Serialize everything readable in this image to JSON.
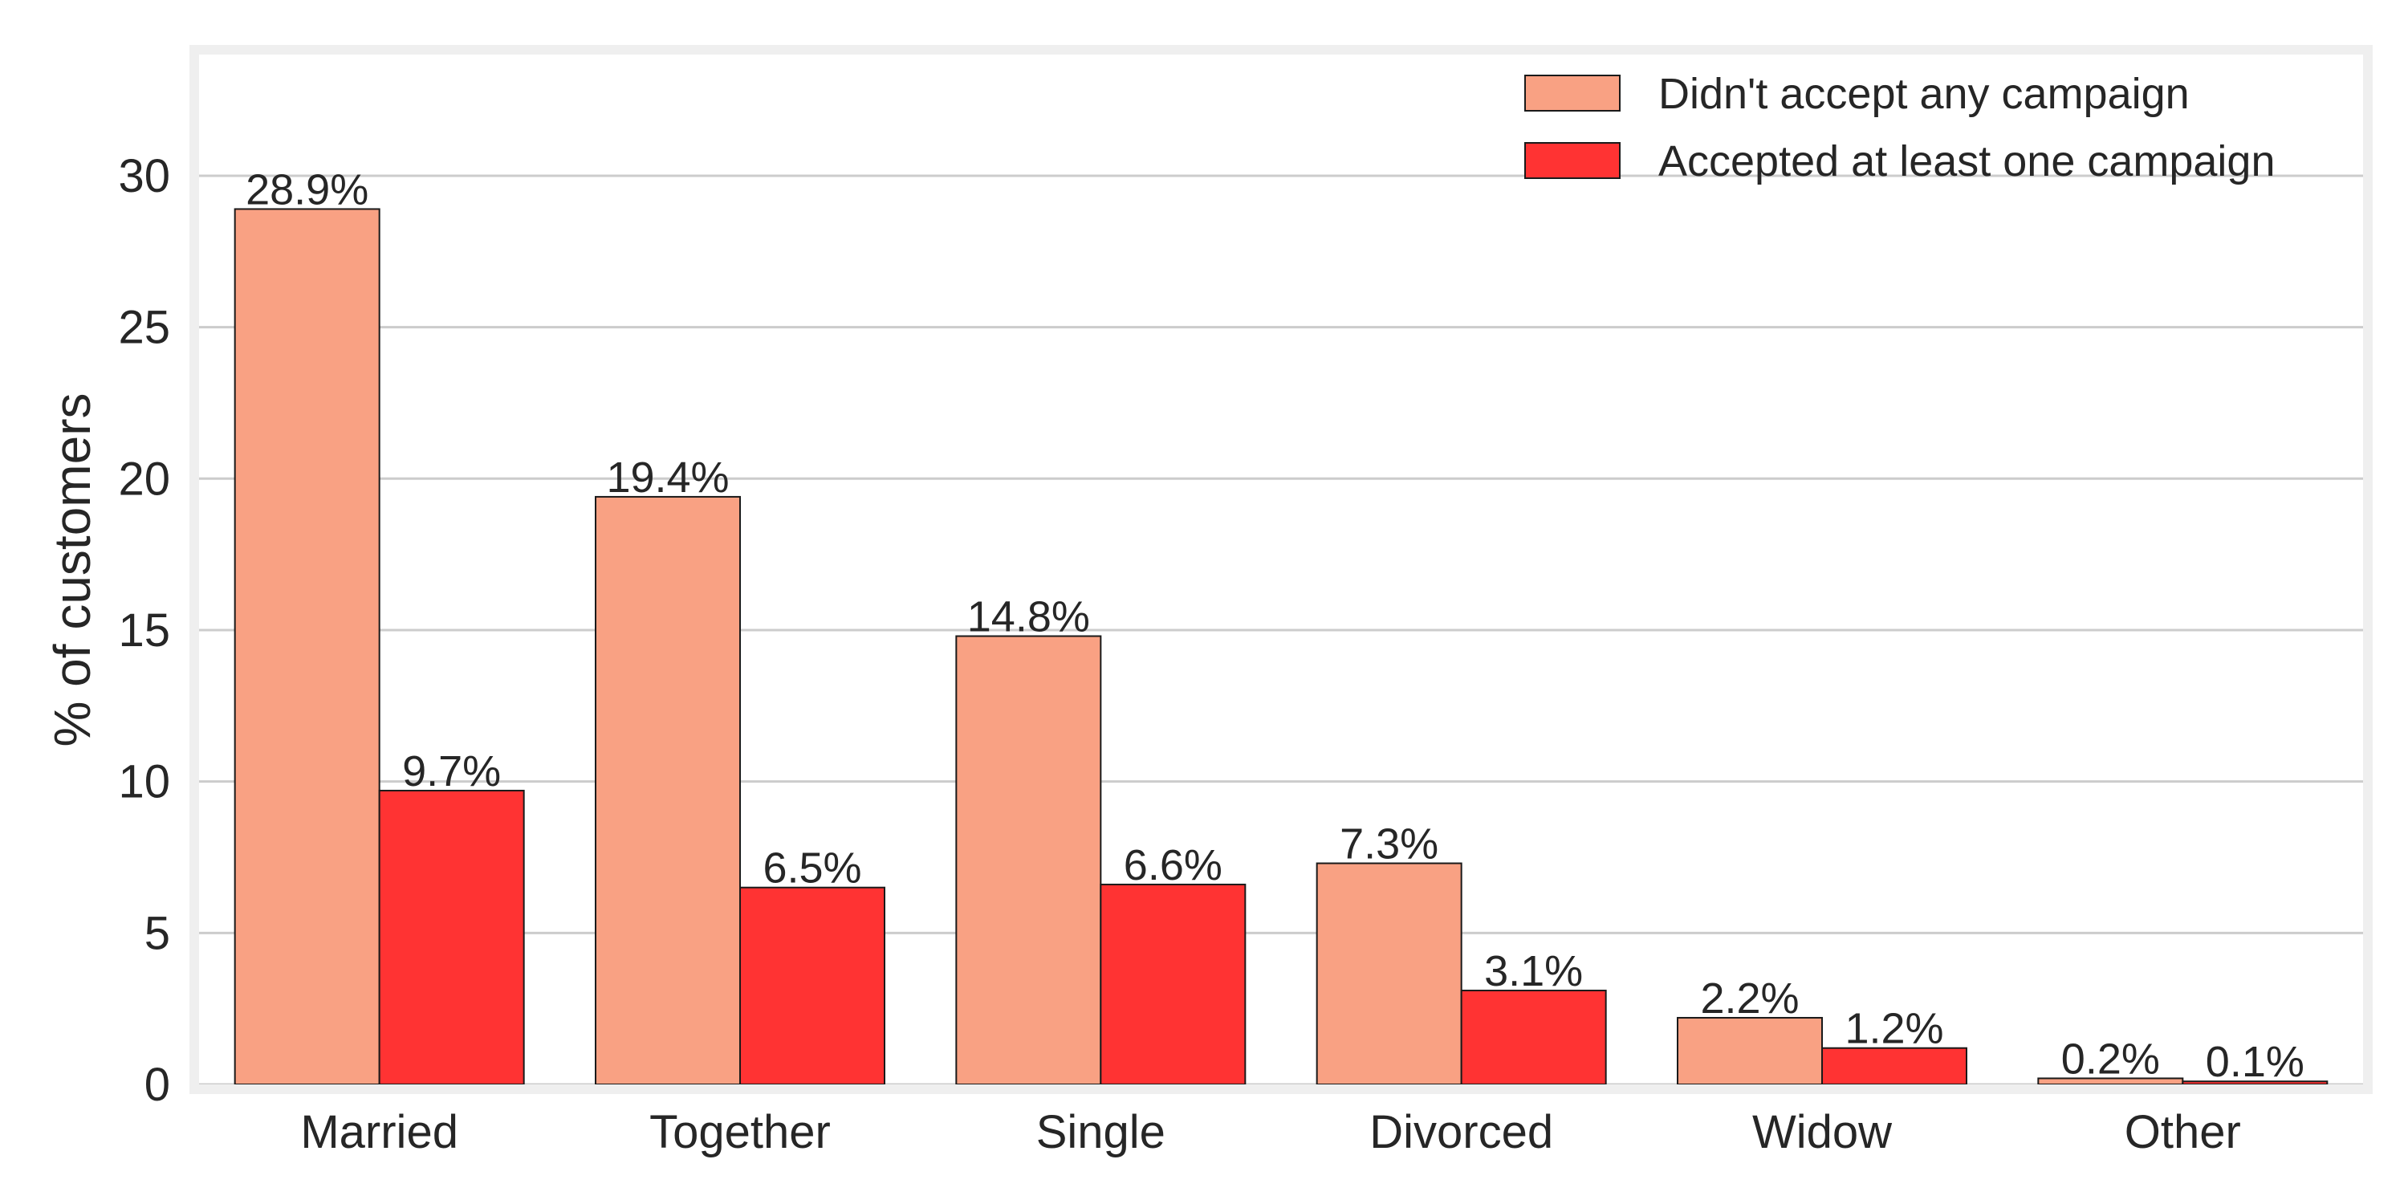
{
  "chart_data": {
    "type": "bar",
    "title": "",
    "xlabel": "",
    "ylabel": "% of customers",
    "ylim": [
      0,
      34
    ],
    "yticks": [
      0,
      5,
      10,
      15,
      20,
      25,
      30
    ],
    "grid": "y",
    "legend_position": "top-right",
    "categories": [
      "Married",
      "Together",
      "Single",
      "Divorced",
      "Widow",
      "Other"
    ],
    "series": [
      {
        "name": "Didn't accept any campaign",
        "color": "#f9a183",
        "values": [
          28.9,
          19.4,
          14.8,
          7.3,
          2.2,
          0.2
        ],
        "labels": [
          "28.9%",
          "19.4%",
          "14.8%",
          "7.3%",
          "2.2%",
          "0.2%"
        ]
      },
      {
        "name": "Accepted at least one campaign",
        "color": "#ff3333",
        "values": [
          9.7,
          6.5,
          6.6,
          3.1,
          1.2,
          0.1
        ],
        "labels": [
          "9.7%",
          "6.5%",
          "6.6%",
          "3.1%",
          "1.2%",
          "0.1%"
        ]
      }
    ]
  }
}
